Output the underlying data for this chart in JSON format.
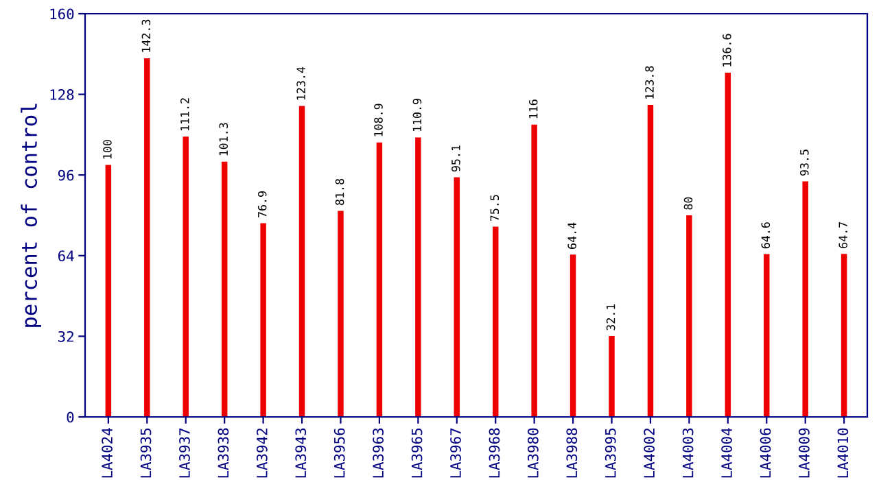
{
  "chart_data": {
    "type": "bar",
    "ylabel": "percent of control",
    "categories": [
      "LA4024",
      "LA3935",
      "LA3937",
      "LA3938",
      "LA3942",
      "LA3943",
      "LA3956",
      "LA3963",
      "LA3965",
      "LA3967",
      "LA3968",
      "LA3980",
      "LA3988",
      "LA3995",
      "LA4002",
      "LA4003",
      "LA4004",
      "LA4006",
      "LA4009",
      "LA4010"
    ],
    "values": [
      100,
      142.3,
      111.2,
      101.3,
      76.9,
      123.4,
      81.8,
      108.9,
      110.9,
      95.1,
      75.5,
      116,
      64.4,
      32.1,
      123.8,
      80,
      136.6,
      64.6,
      93.5,
      64.7
    ],
    "color": "#ee0000",
    "ylim": [
      0,
      160
    ],
    "yticks": [
      0,
      32,
      64,
      96,
      128,
      160
    ],
    "data_labels": true,
    "grid": false
  }
}
